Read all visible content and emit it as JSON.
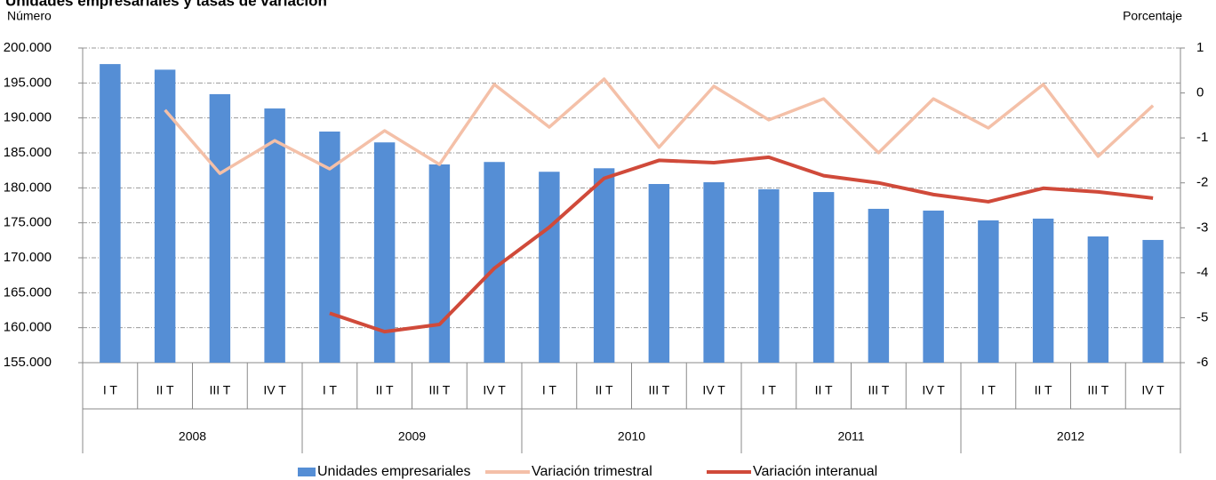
{
  "chart_data": {
    "type": "bar",
    "title": "Unidades empresariales y tasas de variación",
    "y_label": "Número",
    "y2_label": "Porcentaje",
    "categories": [
      "I T",
      "II T",
      "III T",
      "IV T",
      "I T",
      "II T",
      "III T",
      "IV T",
      "I T",
      "II T",
      "III T",
      "IV T",
      "I T",
      "II T",
      "III T",
      "IV T",
      "I T",
      "II T",
      "III T",
      "IV T"
    ],
    "groups": [
      "2008",
      "2009",
      "2010",
      "2011",
      "2012"
    ],
    "series": [
      {
        "name": "Unidades empresariales",
        "type": "bar",
        "color": "#558ed5",
        "values": [
          197700,
          196900,
          193400,
          191350,
          188050,
          186500,
          183350,
          183700,
          182300,
          182800,
          180550,
          180800,
          179800,
          179400,
          177000,
          176750,
          175350,
          175600,
          173050,
          172550
        ]
      },
      {
        "name": "Variación trimestral",
        "type": "line",
        "axis": "y2",
        "color": "#f4c0a8",
        "values": [
          null,
          -0.38,
          -1.79,
          -1.06,
          -1.69,
          -0.84,
          -1.59,
          0.19,
          -0.76,
          0.31,
          -1.21,
          0.15,
          -0.6,
          -0.13,
          -1.33,
          -0.13,
          -0.78,
          0.19,
          -1.41,
          -0.28
        ]
      },
      {
        "name": "Variación interanual",
        "type": "line",
        "axis": "y2",
        "color": "#d04a3a",
        "values": [
          null,
          null,
          null,
          null,
          -4.9,
          -5.31,
          -5.15,
          -3.9,
          -2.99,
          -1.9,
          -1.5,
          -1.55,
          -1.43,
          -1.84,
          -2.0,
          -2.26,
          -2.42,
          -2.12,
          -2.2,
          -2.34
        ]
      }
    ],
    "ylim": [
      155000,
      200000
    ],
    "yticks": [
      {
        "value": 155000,
        "label": "155.000"
      },
      {
        "value": 160000,
        "label": "160.000"
      },
      {
        "value": 165000,
        "label": "165.000"
      },
      {
        "value": 170000,
        "label": "170.000"
      },
      {
        "value": 175000,
        "label": "175.000"
      },
      {
        "value": 180000,
        "label": "180.000"
      },
      {
        "value": 185000,
        "label": "185.000"
      },
      {
        "value": 190000,
        "label": "190.000"
      },
      {
        "value": 195000,
        "label": "195.000"
      },
      {
        "value": 200000,
        "label": "200.000"
      }
    ],
    "y2lim": [
      -6,
      1
    ],
    "y2ticks": [
      -6,
      -5,
      -4,
      -3,
      -2,
      -1,
      0,
      1
    ],
    "grid": true
  }
}
